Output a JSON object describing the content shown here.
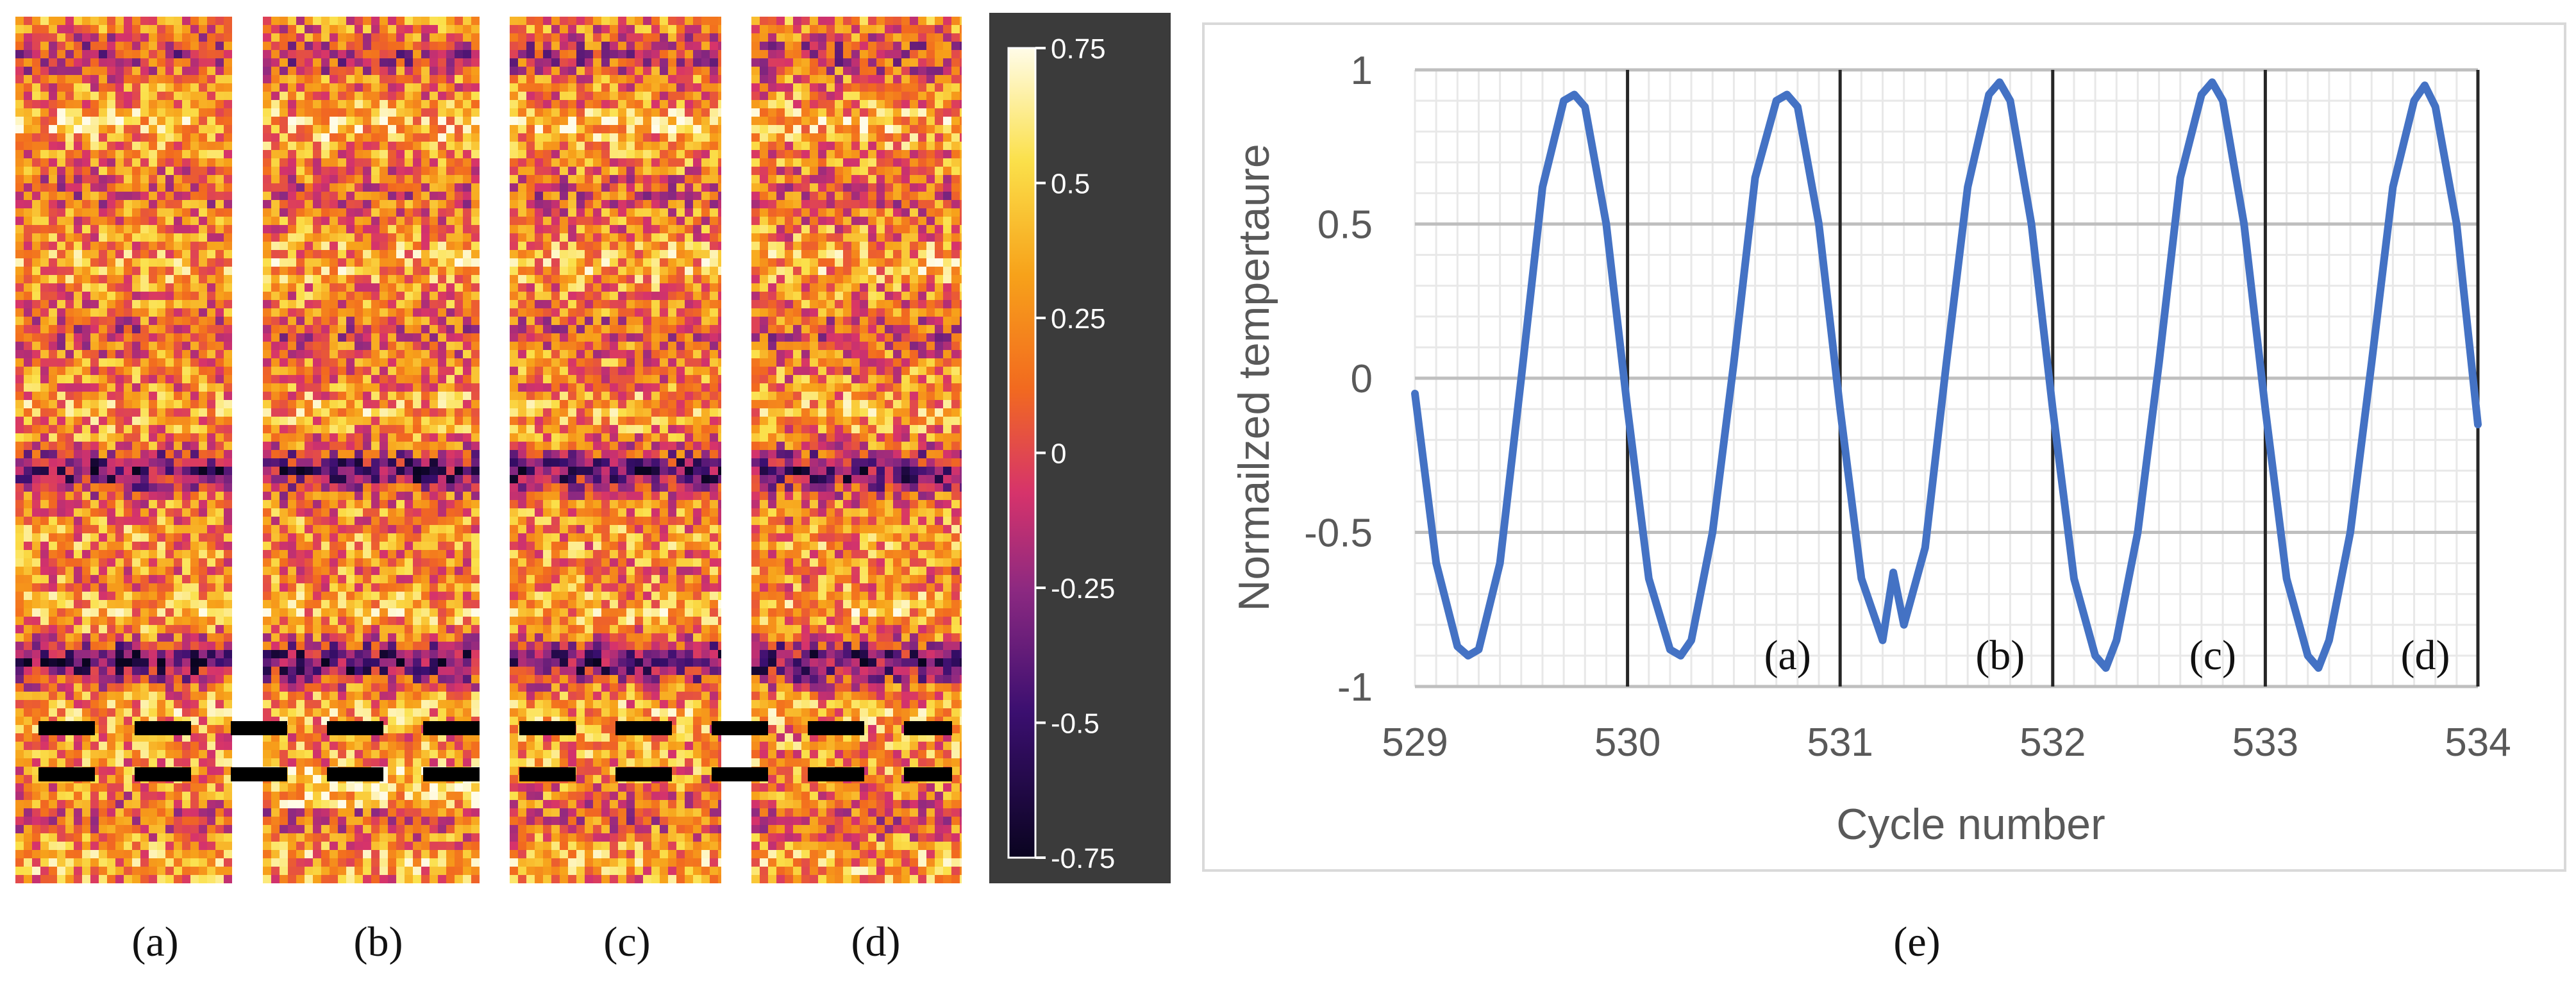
{
  "panels": [
    {
      "id": "a",
      "label": "(a)"
    },
    {
      "id": "b",
      "label": "(b)"
    },
    {
      "id": "c",
      "label": "(c)"
    },
    {
      "id": "d",
      "label": "(d)"
    }
  ],
  "colorbar": {
    "ticks": [
      "0.75",
      "0.5",
      "0.25",
      "0",
      "-0.25",
      "-0.5",
      "-0.75"
    ],
    "min": -0.75,
    "max": 0.75,
    "background": "#3b3b3b"
  },
  "panel_e_label": "(e)",
  "chart_data": {
    "type": "line",
    "title": "",
    "xlabel": "Cycle number",
    "ylabel": "Normailzed tempertaure",
    "xlim": [
      529,
      534
    ],
    "ylim": [
      -1,
      1
    ],
    "x_ticks": [
      "529",
      "530",
      "531",
      "532",
      "533",
      "534"
    ],
    "y_ticks": [
      "1",
      "0.5",
      "0",
      "-0.5",
      "-1"
    ],
    "grid": true,
    "line_color": "#4472c4",
    "series": [
      {
        "name": "Normalized temperature",
        "x": [
          529.0,
          529.1,
          529.2,
          529.25,
          529.3,
          529.4,
          529.5,
          529.6,
          529.7,
          529.75,
          529.8,
          529.9,
          530.0,
          530.1,
          530.2,
          530.25,
          530.3,
          530.4,
          530.5,
          530.6,
          530.7,
          530.75,
          530.8,
          530.9,
          531.0,
          531.1,
          531.2,
          531.25,
          531.3,
          531.4,
          531.5,
          531.6,
          531.7,
          531.75,
          531.8,
          531.9,
          532.0,
          532.1,
          532.2,
          532.25,
          532.3,
          532.4,
          532.5,
          532.6,
          532.7,
          532.75,
          532.8,
          532.9,
          533.0,
          533.1,
          533.2,
          533.25,
          533.3,
          533.4,
          533.5,
          533.6,
          533.7,
          533.75,
          533.8,
          533.9,
          534.0
        ],
        "y": [
          -0.05,
          -0.6,
          -0.87,
          -0.9,
          -0.88,
          -0.6,
          0.0,
          0.62,
          0.9,
          0.92,
          0.88,
          0.5,
          -0.1,
          -0.65,
          -0.88,
          -0.9,
          -0.85,
          -0.5,
          0.05,
          0.65,
          0.9,
          0.92,
          0.88,
          0.5,
          -0.1,
          -0.65,
          -0.85,
          -0.63,
          -0.8,
          -0.55,
          0.05,
          0.62,
          0.92,
          0.96,
          0.9,
          0.5,
          -0.1,
          -0.65,
          -0.9,
          -0.94,
          -0.85,
          -0.5,
          0.05,
          0.65,
          0.92,
          0.96,
          0.9,
          0.5,
          -0.1,
          -0.65,
          -0.9,
          -0.94,
          -0.85,
          -0.5,
          0.05,
          0.62,
          0.9,
          0.95,
          0.88,
          0.5,
          -0.15
        ]
      }
    ],
    "vertical_markers": [
      {
        "x": 530,
        "label": ""
      },
      {
        "x": 531,
        "label": "(a)"
      },
      {
        "x": 532,
        "label": "(b)"
      },
      {
        "x": 533,
        "label": "(c)"
      },
      {
        "x": 534,
        "label": "(d)"
      }
    ]
  }
}
